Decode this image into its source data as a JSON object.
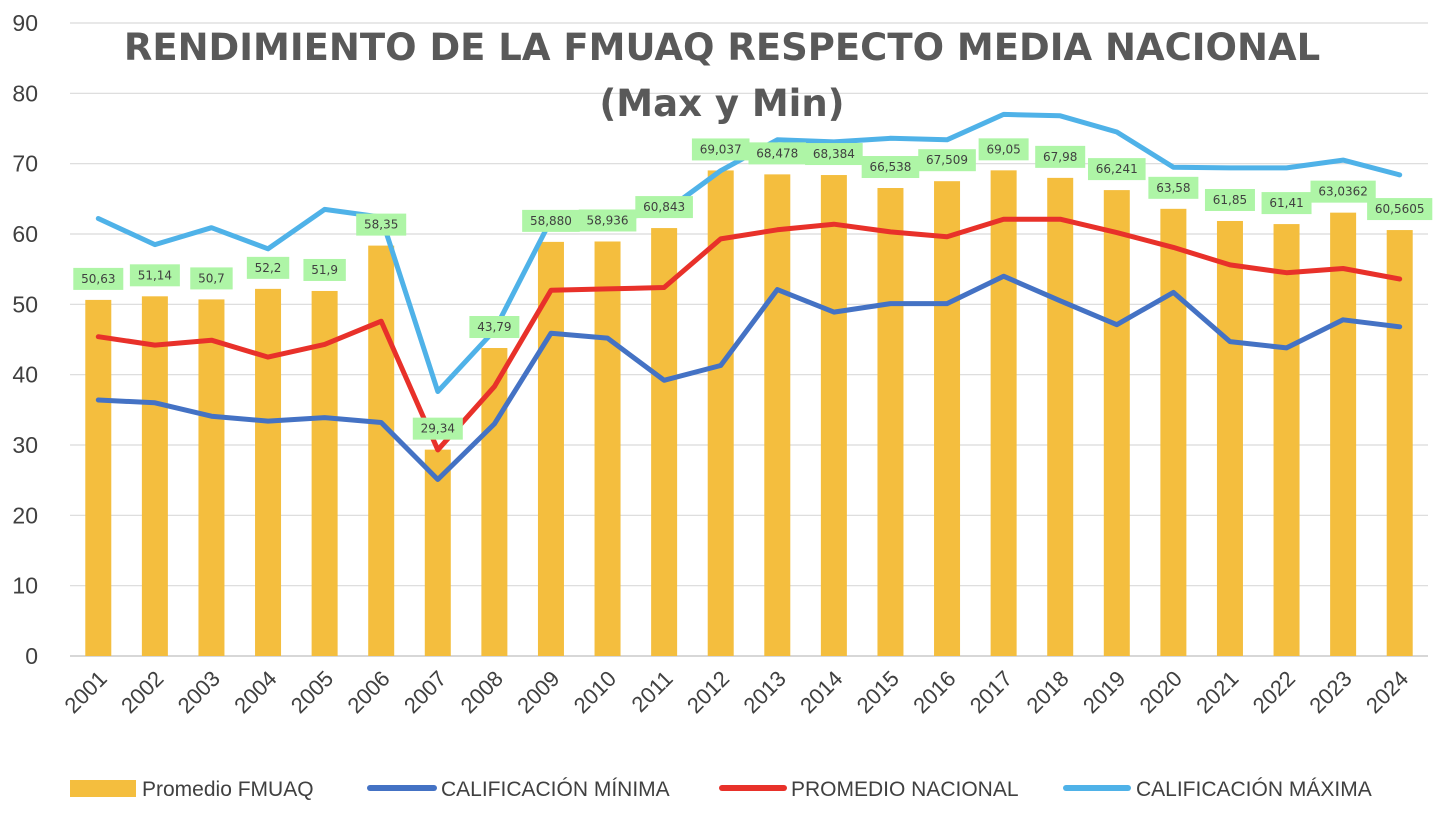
{
  "chart_data": {
    "type": "bar",
    "title": "RENDIMIENTO DE LA FMUAQ RESPECTO MEDIA NACIONAL",
    "subtitle": "(Max y Min)",
    "xlabel": "",
    "ylabel": "",
    "ylim": [
      0,
      90
    ],
    "yticks": [
      "0",
      "10",
      "20",
      "30",
      "40",
      "50",
      "60",
      "70",
      "80",
      "90"
    ],
    "grid": true,
    "legend_position": "bottom",
    "categories": [
      "2001",
      "2002",
      "2003",
      "2004",
      "2005",
      "2006",
      "2007",
      "2008",
      "2009",
      "2010",
      "2011",
      "2012",
      "2013",
      "2014",
      "2015",
      "2016",
      "2017",
      "2018",
      "2019",
      "2020",
      "2021",
      "2022",
      "2023",
      "2024"
    ],
    "bars": {
      "name": "Promedio FMUAQ",
      "color": "#F4BE3E",
      "values": [
        50.63,
        51.14,
        50.7,
        52.2,
        51.9,
        58.35,
        29.34,
        43.79,
        58.88,
        58.936,
        60.843,
        69.037,
        68.478,
        68.384,
        66.538,
        67.509,
        69.05,
        67.98,
        66.241,
        63.58,
        61.85,
        61.41,
        63.0362,
        60.5605
      ],
      "labels": [
        "50,63",
        "51,14",
        "50,7",
        "52,2",
        "51,9",
        "58,35",
        "29,34",
        "43,79",
        "58,880",
        "58,936",
        "60,843",
        "69,037",
        "68,478",
        "68,384",
        "66,538",
        "67,509",
        "69,05",
        "67,98",
        "66,241",
        "63,58",
        "61,85",
        "61,41",
        "63,0362",
        "60,5605"
      ]
    },
    "lines": [
      {
        "name": "CALIFICACIÓN MÍNIMA",
        "color": "#4472C4",
        "values": [
          36.4,
          36.0,
          34.1,
          33.4,
          33.9,
          33.2,
          25.1,
          33.0,
          45.9,
          45.2,
          39.2,
          41.3,
          52.1,
          48.9,
          50.1,
          50.1,
          54.0,
          50.5,
          47.1,
          51.7,
          44.7,
          43.8,
          47.8,
          46.8
        ]
      },
      {
        "name": "PROMEDIO NACIONAL",
        "color": "#E8312A",
        "values": [
          45.4,
          44.2,
          44.9,
          42.5,
          44.3,
          47.6,
          29.3,
          38.3,
          52.0,
          52.2,
          52.4,
          59.3,
          60.6,
          61.4,
          60.3,
          59.6,
          62.1,
          62.1,
          60.2,
          58.1,
          55.6,
          54.5,
          55.1,
          53.6
        ]
      },
      {
        "name": "CALIFICACIÓN MÁXIMA",
        "color": "#4FB2E8",
        "values": [
          62.2,
          58.5,
          60.9,
          57.9,
          63.5,
          62.4,
          37.6,
          46.3,
          62.0,
          62.1,
          63.1,
          69.0,
          73.4,
          73.1,
          73.6,
          73.4,
          77.0,
          76.8,
          74.5,
          69.5,
          69.4,
          69.4,
          70.5,
          68.4
        ]
      }
    ]
  }
}
